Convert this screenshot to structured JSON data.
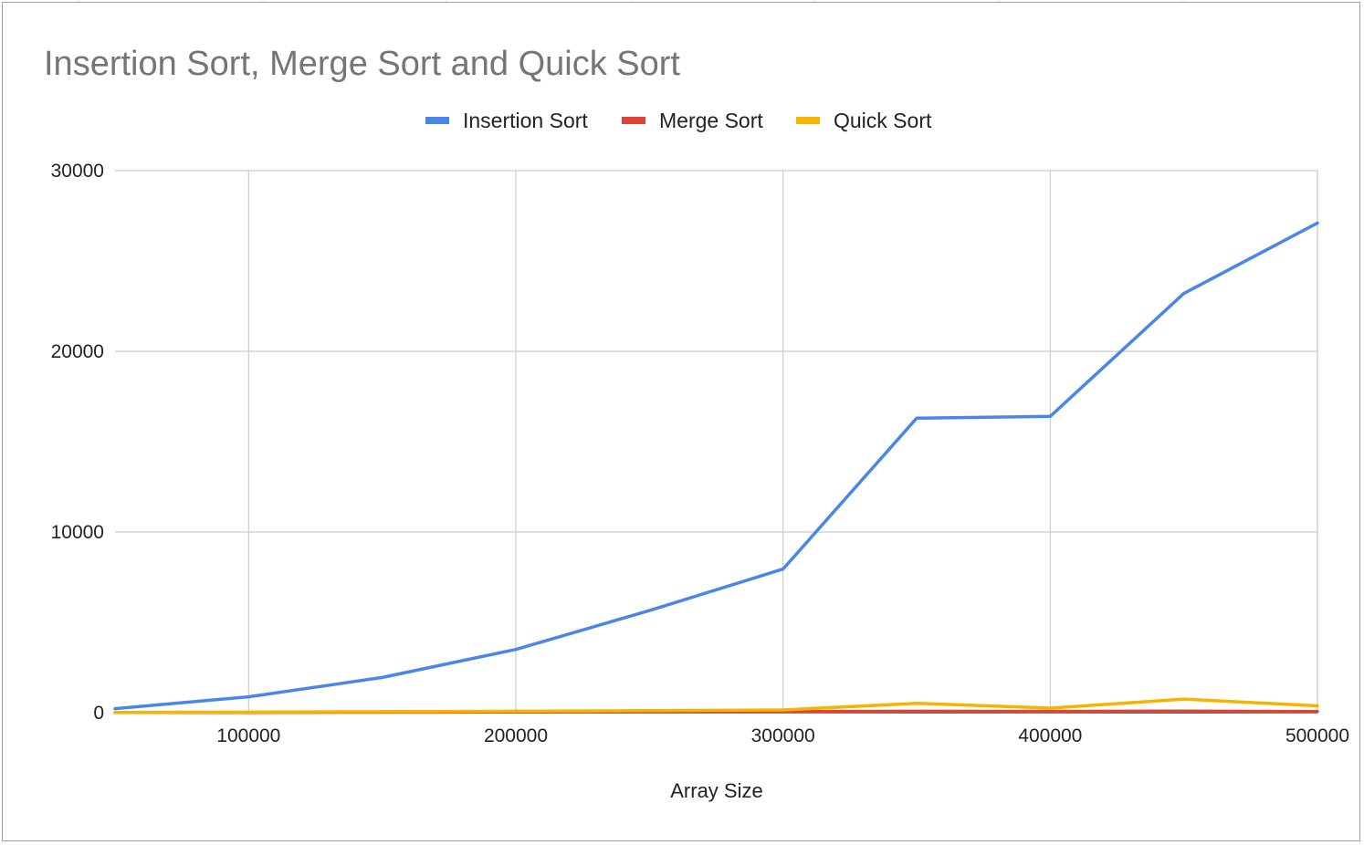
{
  "chart_data": {
    "type": "line",
    "title": "Insertion Sort, Merge Sort and Quick Sort",
    "xlabel": "Array Size",
    "ylabel": "",
    "x": [
      50000,
      100000,
      150000,
      200000,
      250000,
      300000,
      350000,
      400000,
      450000,
      500000
    ],
    "xlim": [
      50000,
      500000
    ],
    "ylim": [
      0,
      30000
    ],
    "x_ticks": [
      100000,
      200000,
      300000,
      400000,
      500000
    ],
    "x_tick_labels": [
      "100000",
      "200000",
      "300000",
      "400000",
      "500000"
    ],
    "y_ticks": [
      0,
      10000,
      20000,
      30000
    ],
    "y_tick_labels": [
      "0",
      "10000",
      "20000",
      "30000"
    ],
    "grid": true,
    "legend_position": "top-center",
    "series": [
      {
        "name": "Insertion Sort",
        "color": "#4a86e8",
        "values": [
          220,
          880,
          1950,
          3500,
          5650,
          7950,
          16300,
          16400,
          23200,
          27100
        ]
      },
      {
        "name": "Merge Sort",
        "color": "#db4437",
        "values": [
          10,
          15,
          25,
          40,
          50,
          60,
          80,
          70,
          90,
          60
        ]
      },
      {
        "name": "Quick Sort",
        "color": "#f4b400",
        "values": [
          15,
          30,
          55,
          80,
          110,
          150,
          520,
          250,
          750,
          380
        ]
      }
    ]
  }
}
